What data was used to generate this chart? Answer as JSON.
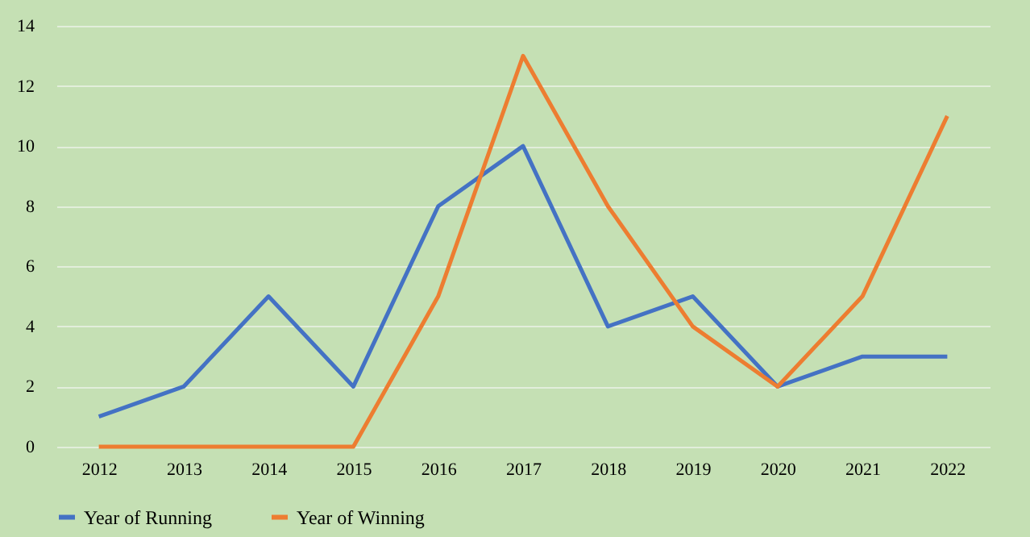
{
  "chart_data": {
    "type": "line",
    "categories": [
      "2012",
      "2013",
      "2014",
      "2015",
      "2016",
      "2017",
      "2018",
      "2019",
      "2020",
      "2021",
      "2022"
    ],
    "series": [
      {
        "name": "Year of Running",
        "color": "#4472c4",
        "values": [
          1,
          2,
          5,
          2,
          8,
          10,
          4,
          5,
          2,
          3,
          3
        ]
      },
      {
        "name": "Year of Winning",
        "color": "#ed7d31",
        "values": [
          0,
          0,
          0,
          0,
          5,
          13,
          8,
          4,
          2,
          5,
          11
        ]
      }
    ],
    "ylim": [
      0,
      14
    ],
    "yticks": [
      0,
      2,
      4,
      6,
      8,
      10,
      12,
      14
    ],
    "grid": "y",
    "legend": "bottom",
    "marker": "none",
    "line_style": "solid"
  }
}
